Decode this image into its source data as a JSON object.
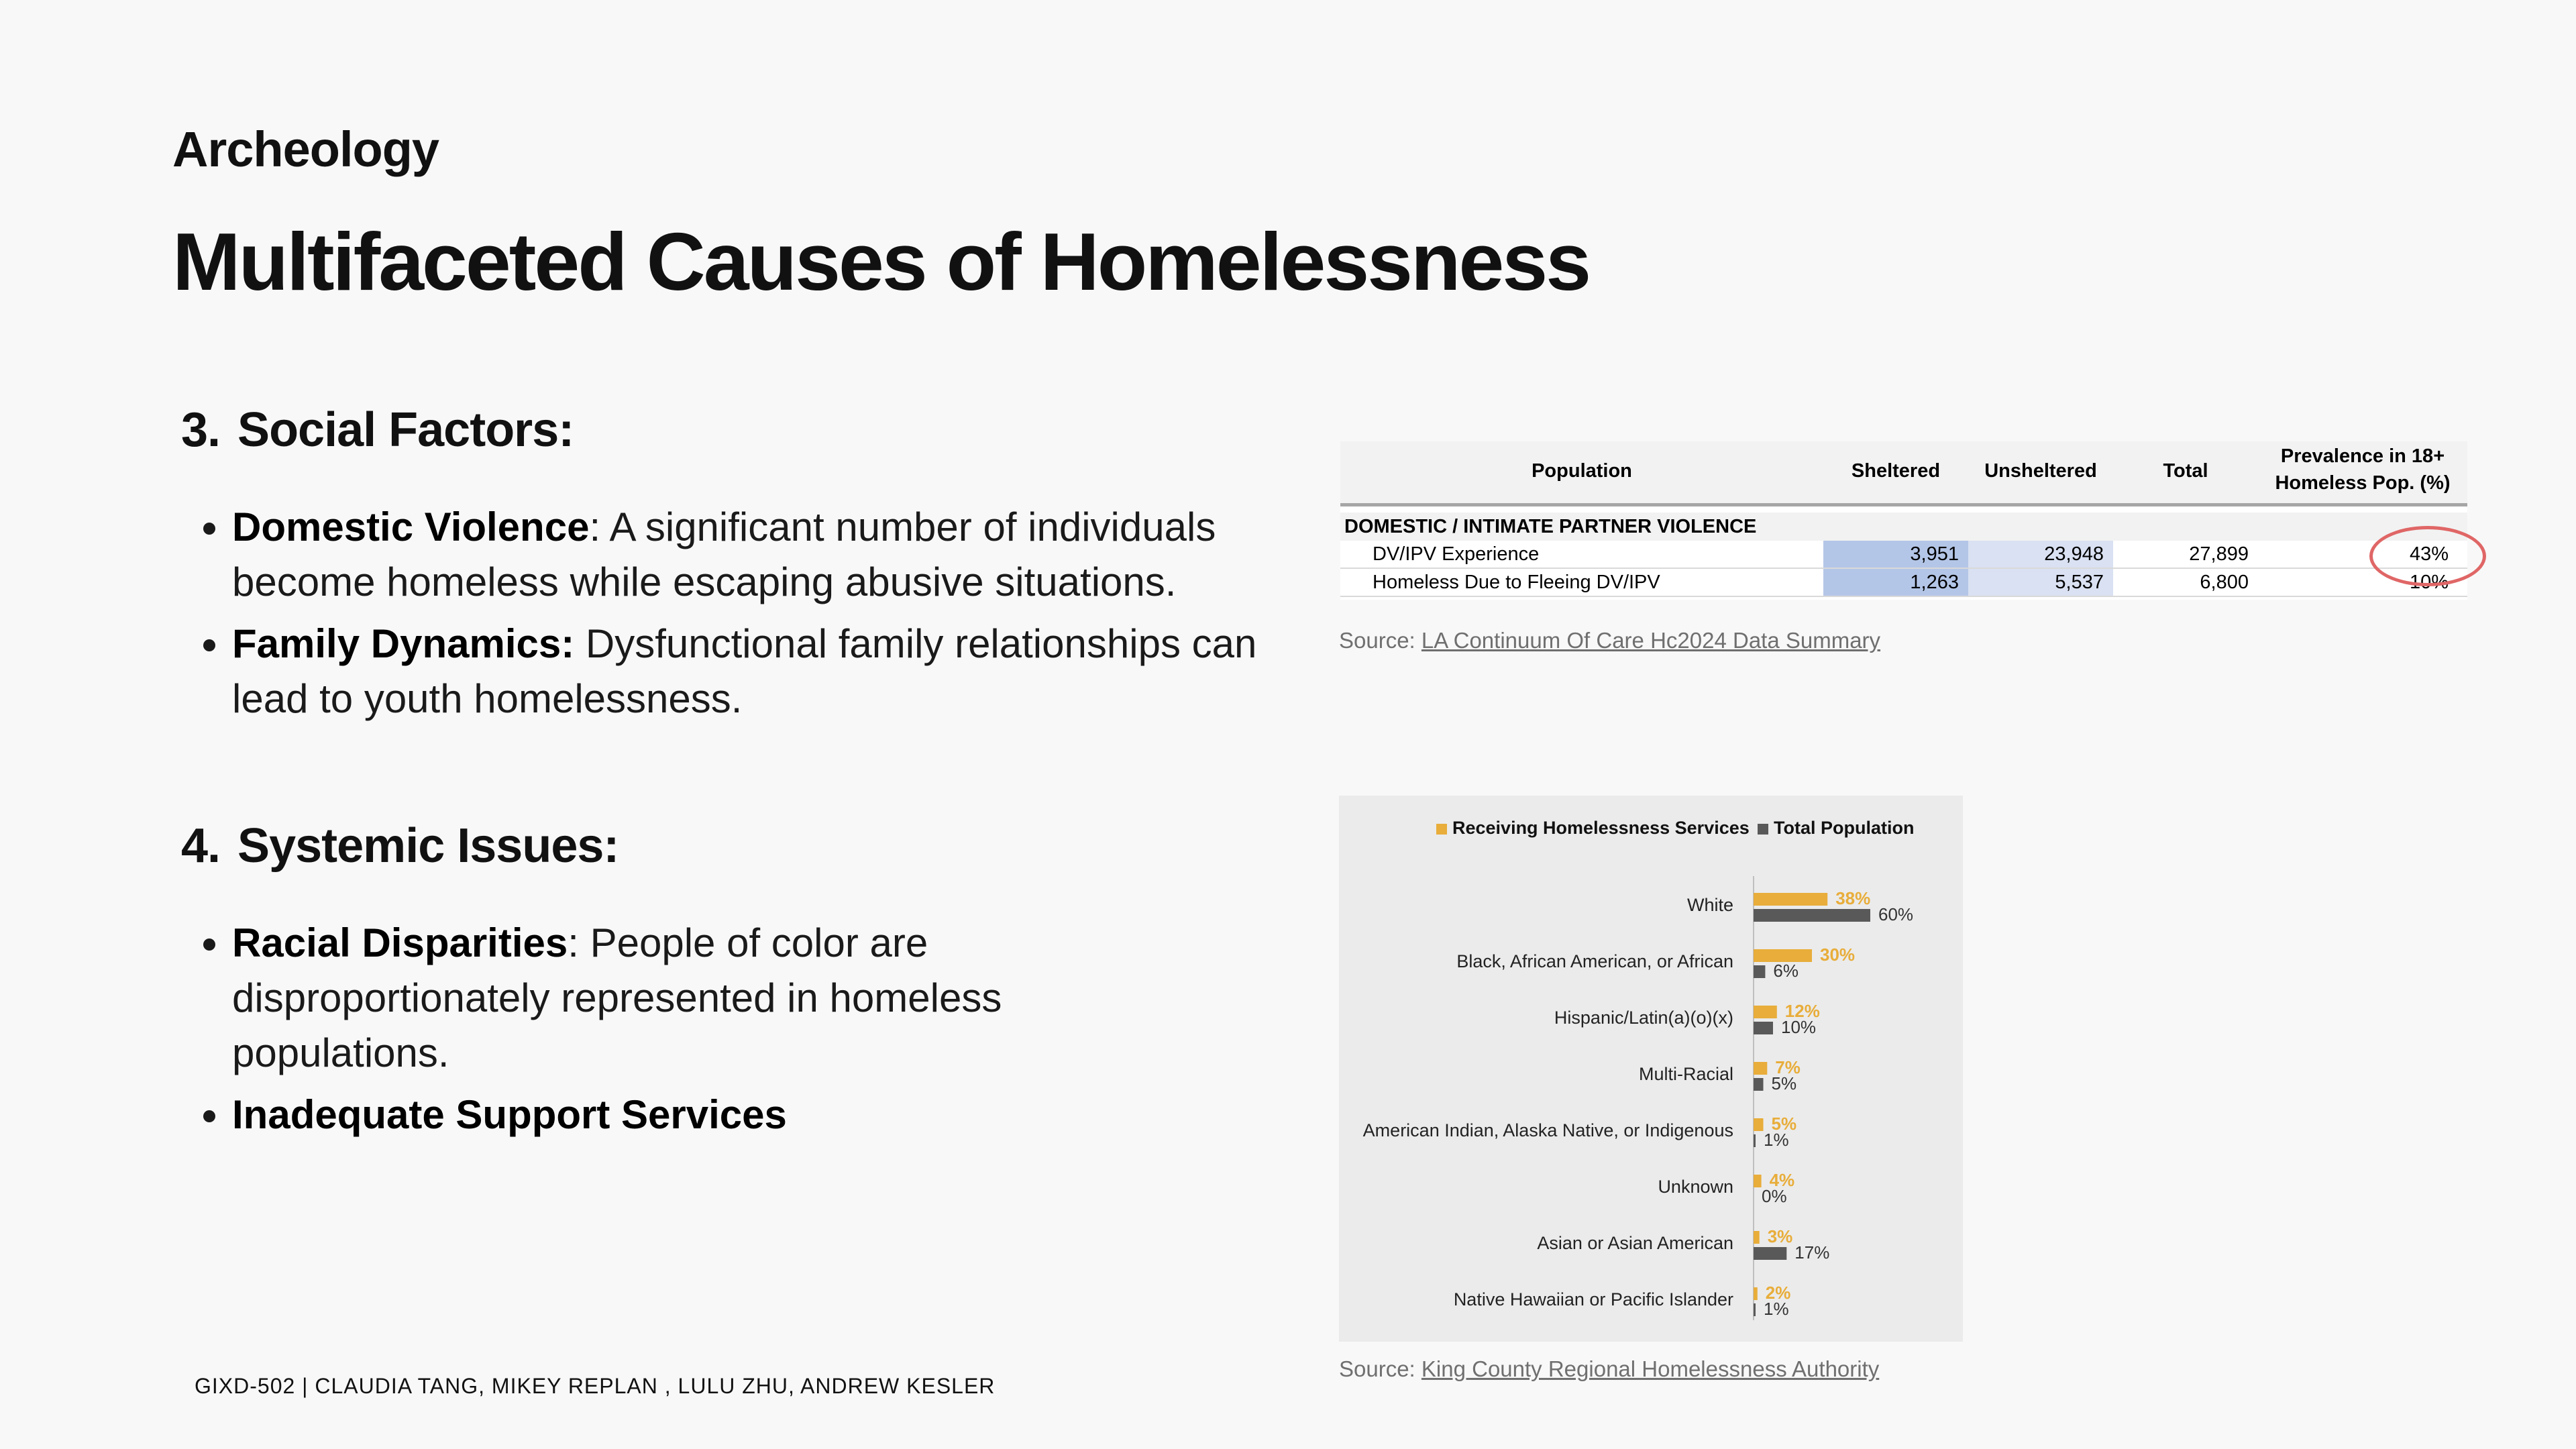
{
  "kicker": "Archeology",
  "title": "Multifaceted Causes of Homelessness",
  "sections": [
    {
      "number": "3.",
      "heading": "Social Factors:",
      "bullets": [
        {
          "bold": "Domestic Violence",
          "text": ": A significant number of individuals become homeless while escaping abusive situations."
        },
        {
          "bold": "Family Dynamics:",
          "text": " Dysfunctional family relationships can lead to youth homelessness."
        }
      ]
    },
    {
      "number": "4.",
      "heading": "Systemic Issues:",
      "bullets": [
        {
          "bold": "Racial Disparities",
          "text": ": People of color are disproportionately represented in homeless populations."
        },
        {
          "bold": "Inadequate Support Services",
          "text": ""
        }
      ]
    }
  ],
  "table": {
    "headers": {
      "population": "Population",
      "sheltered": "Sheltered",
      "unsheltered": "Unsheltered",
      "total": "Total",
      "prevalence_line1": "Prevalence in 18+",
      "prevalence_line2": "Homeless Pop. (%)"
    },
    "section_label": "DOMESTIC / INTIMATE PARTNER VIOLENCE",
    "rows": [
      {
        "label": "DV/IPV Experience",
        "sheltered": "3,951",
        "unsheltered": "23,948",
        "total": "27,899",
        "prevalence": "43%"
      },
      {
        "label": "Homeless Due to Fleeing DV/IPV",
        "sheltered": "1,263",
        "unsheltered": "5,537",
        "total": "6,800",
        "prevalence": "10%"
      }
    ],
    "highlight_color": "#e06666",
    "source_prefix": "Source: ",
    "source_link": "LA Continuum Of Care Hc2024 Data Summary"
  },
  "chart_data": {
    "type": "bar",
    "orientation": "horizontal",
    "categories": [
      "White",
      "Black, African American, or African",
      "Hispanic/Latin(a)(o)(x)",
      "Multi-Racial",
      "American Indian, Alaska Native, or Indigenous",
      "Unknown",
      "Asian or Asian American",
      "Native Hawaiian or Pacific Islander"
    ],
    "series": [
      {
        "name": "Receiving Homelessness Services",
        "color": "#e8ad3a",
        "values": [
          38,
          30,
          12,
          7,
          5,
          4,
          3,
          2
        ]
      },
      {
        "name": "Total Population",
        "color": "#595959",
        "values": [
          60,
          6,
          10,
          5,
          1,
          0,
          17,
          1
        ]
      }
    ],
    "value_labels": [
      [
        "38%",
        "30%",
        "12%",
        "7%",
        "5%",
        "4%",
        "3%",
        "2%"
      ],
      [
        "60%",
        "6%",
        "10%",
        "5%",
        "1%",
        "0%",
        "17%",
        "1%"
      ]
    ],
    "legend_position": "top",
    "xlim": [
      0,
      100
    ],
    "grid": false
  },
  "chart_source": {
    "prefix": "Source: ",
    "link": "King County Regional Homelessness Authority"
  },
  "footer": "GIXD-502 | CLAUDIA TANG, MIKEY REPLAN , LULU ZHU, ANDREW KESLER"
}
